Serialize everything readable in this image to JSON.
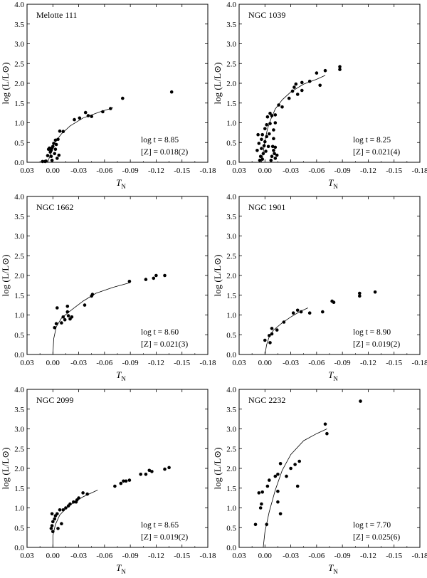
{
  "chart_data": [
    {
      "type": "scatter",
      "title": "Melotte 111",
      "xlabel": "T",
      "xlabel_sub": "N",
      "ylabel": "log (L/L⊙)",
      "xlim": [
        0.03,
        -0.18
      ],
      "ylim": [
        0.0,
        4.0
      ],
      "xticks": [
        "0.03",
        "0.00",
        "-0.03",
        "-0.06",
        "-0.09",
        "-0.12",
        "-0.15",
        "-0.18"
      ],
      "yticks": [
        "0.0",
        "0.5",
        "1.0",
        "1.5",
        "2.0",
        "2.5",
        "3.0",
        "3.5",
        "4.0"
      ],
      "annotation_age": "log t = 8.85",
      "annotation_z": "[Z] = 0.018(2)",
      "points": [
        [
          -0.138,
          1.78
        ],
        [
          -0.081,
          1.62
        ],
        [
          -0.067,
          1.36
        ],
        [
          -0.058,
          1.28
        ],
        [
          -0.045,
          1.16
        ],
        [
          -0.041,
          1.18
        ],
        [
          -0.038,
          1.26
        ],
        [
          -0.031,
          1.12
        ],
        [
          -0.025,
          1.08
        ],
        [
          -0.012,
          0.78
        ],
        [
          -0.008,
          0.79
        ],
        [
          -0.006,
          0.58
        ],
        [
          -0.004,
          0.45
        ],
        [
          -0.003,
          0.33
        ],
        [
          -0.002,
          0.22
        ],
        [
          -0.001,
          0.48
        ],
        [
          0.0,
          0.4
        ],
        [
          0.001,
          0.36
        ],
        [
          0.002,
          0.3
        ],
        [
          0.003,
          0.26
        ],
        [
          0.002,
          0.15
        ],
        [
          0.001,
          0.05
        ],
        [
          0.004,
          0.36
        ],
        [
          0.005,
          0.33
        ],
        [
          0.006,
          0.17
        ],
        [
          0.008,
          0.03
        ],
        [
          0.009,
          0.02
        ],
        [
          0.012,
          0.02
        ],
        [
          -0.003,
          0.56
        ],
        [
          -0.005,
          0.1
        ],
        [
          -0.007,
          0.18
        ]
      ],
      "curve": [
        [
          0.006,
          0.0
        ],
        [
          0.004,
          0.12
        ],
        [
          0.002,
          0.28
        ],
        [
          0.0,
          0.42
        ],
        [
          -0.004,
          0.55
        ],
        [
          -0.01,
          0.72
        ],
        [
          -0.02,
          0.92
        ],
        [
          -0.035,
          1.12
        ],
        [
          -0.055,
          1.28
        ],
        [
          -0.07,
          1.38
        ]
      ]
    },
    {
      "type": "scatter",
      "title": "NGC 1039",
      "xlabel": "T",
      "xlabel_sub": "N",
      "ylabel": "log (L/L⊙)",
      "xlim": [
        0.03,
        -0.18
      ],
      "ylim": [
        0.0,
        4.0
      ],
      "xticks": [
        "0.03",
        "0.00",
        "-0.03",
        "-0.06",
        "-0.09",
        "-0.12",
        "-0.15",
        "-0.18"
      ],
      "yticks": [
        "0.0",
        "0.5",
        "1.0",
        "1.5",
        "2.0",
        "2.5",
        "3.0",
        "3.5",
        "4.0"
      ],
      "annotation_age": "log t = 8.25",
      "annotation_z": "[Z] = 0.021(4)",
      "points": [
        [
          -0.087,
          2.42
        ],
        [
          -0.087,
          2.35
        ],
        [
          -0.07,
          2.32
        ],
        [
          -0.06,
          2.26
        ],
        [
          -0.064,
          1.95
        ],
        [
          -0.052,
          2.05
        ],
        [
          -0.043,
          2.02
        ],
        [
          -0.043,
          1.82
        ],
        [
          -0.038,
          1.72
        ],
        [
          -0.036,
          1.98
        ],
        [
          -0.034,
          1.9
        ],
        [
          -0.032,
          1.8
        ],
        [
          -0.028,
          1.62
        ],
        [
          -0.02,
          1.4
        ],
        [
          -0.016,
          1.45
        ],
        [
          -0.012,
          1.2
        ],
        [
          -0.012,
          1.0
        ],
        [
          -0.01,
          0.82
        ],
        [
          -0.01,
          0.6
        ],
        [
          -0.008,
          1.18
        ],
        [
          -0.006,
          1.24
        ],
        [
          -0.006,
          0.98
        ],
        [
          -0.005,
          0.72
        ],
        [
          -0.004,
          0.4
        ],
        [
          -0.003,
          1.15
        ],
        [
          -0.002,
          0.95
        ],
        [
          -0.002,
          0.65
        ],
        [
          -0.001,
          0.28
        ],
        [
          0.0,
          0.85
        ],
        [
          0.0,
          0.52
        ],
        [
          0.001,
          0.42
        ],
        [
          0.002,
          0.22
        ],
        [
          0.003,
          0.7
        ],
        [
          0.003,
          0.08
        ],
        [
          0.004,
          0.58
        ],
        [
          0.004,
          0.35
        ],
        [
          0.005,
          0.15
        ],
        [
          0.006,
          0.05
        ],
        [
          0.007,
          0.48
        ],
        [
          0.008,
          0.7
        ],
        [
          0.009,
          0.3
        ],
        [
          -0.007,
          0.05
        ],
        [
          -0.008,
          0.15
        ],
        [
          -0.009,
          0.4
        ],
        [
          -0.01,
          0.3
        ],
        [
          -0.011,
          0.22
        ],
        [
          -0.012,
          0.1
        ],
        [
          -0.014,
          0.18
        ],
        [
          -0.012,
          0.38
        ]
      ],
      "curve": [
        [
          0.004,
          0.0
        ],
        [
          0.002,
          0.25
        ],
        [
          0.0,
          0.55
        ],
        [
          -0.003,
          0.85
        ],
        [
          -0.007,
          1.1
        ],
        [
          -0.012,
          1.35
        ],
        [
          -0.02,
          1.58
        ],
        [
          -0.03,
          1.78
        ],
        [
          -0.045,
          1.98
        ],
        [
          -0.06,
          2.1
        ],
        [
          -0.07,
          2.2
        ]
      ]
    },
    {
      "type": "scatter",
      "title": "NGC 1662",
      "xlabel": "T",
      "xlabel_sub": "N",
      "ylabel": "log (L/L⊙)",
      "xlim": [
        0.03,
        -0.18
      ],
      "ylim": [
        0.0,
        4.0
      ],
      "xticks": [
        "0.03",
        "0.00",
        "-0.03",
        "-0.06",
        "-0.09",
        "-0.12",
        "-0.15",
        "-0.18"
      ],
      "yticks": [
        "0.0",
        "0.5",
        "1.0",
        "1.5",
        "2.0",
        "2.5",
        "3.0",
        "3.5",
        "4.0"
      ],
      "annotation_age": "log t = 8.60",
      "annotation_z": "[Z] = 0.021(3)",
      "points": [
        [
          -0.13,
          2.0
        ],
        [
          -0.12,
          2.0
        ],
        [
          -0.117,
          1.93
        ],
        [
          -0.108,
          1.9
        ],
        [
          -0.089,
          1.85
        ],
        [
          -0.046,
          1.52
        ],
        [
          -0.045,
          1.48
        ],
        [
          -0.037,
          1.25
        ],
        [
          -0.022,
          0.95
        ],
        [
          -0.018,
          0.98
        ],
        [
          -0.017,
          1.22
        ],
        [
          -0.017,
          1.08
        ],
        [
          -0.014,
          0.88
        ],
        [
          -0.012,
          0.95
        ],
        [
          -0.01,
          0.8
        ],
        [
          -0.005,
          1.18
        ],
        [
          -0.004,
          0.78
        ],
        [
          -0.002,
          0.68
        ],
        [
          -0.02,
          0.9
        ]
      ],
      "curve": [
        [
          0.0,
          0.0
        ],
        [
          -0.001,
          0.4
        ],
        [
          -0.004,
          0.7
        ],
        [
          -0.01,
          0.92
        ],
        [
          -0.02,
          1.1
        ],
        [
          -0.035,
          1.35
        ],
        [
          -0.05,
          1.55
        ],
        [
          -0.07,
          1.7
        ],
        [
          -0.09,
          1.82
        ]
      ]
    },
    {
      "type": "scatter",
      "title": "NGC 1901",
      "xlabel": "T",
      "xlabel_sub": "N",
      "ylabel": "log (L/L⊙)",
      "xlim": [
        0.03,
        -0.18
      ],
      "ylim": [
        0.0,
        4.0
      ],
      "xticks": [
        "0.03",
        "0.00",
        "-0.03",
        "-0.06",
        "-0.09",
        "-0.12",
        "-0.15",
        "-0.18"
      ],
      "yticks": [
        "0.0",
        "0.5",
        "1.0",
        "1.5",
        "2.0",
        "2.5",
        "3.0",
        "3.5",
        "4.0"
      ],
      "annotation_age": "log t = 8.90",
      "annotation_z": "[Z] = 0.019(2)",
      "points": [
        [
          -0.128,
          1.58
        ],
        [
          -0.11,
          1.55
        ],
        [
          -0.11,
          1.48
        ],
        [
          -0.08,
          1.32
        ],
        [
          -0.078,
          1.35
        ],
        [
          -0.067,
          1.08
        ],
        [
          -0.052,
          1.05
        ],
        [
          -0.042,
          1.08
        ],
        [
          -0.038,
          1.12
        ],
        [
          -0.033,
          1.05
        ],
        [
          -0.022,
          0.82
        ],
        [
          -0.014,
          0.62
        ],
        [
          -0.008,
          0.66
        ],
        [
          -0.008,
          0.52
        ],
        [
          -0.005,
          0.48
        ],
        [
          -0.006,
          0.3
        ],
        [
          0.0,
          0.36
        ]
      ],
      "curve": [
        [
          0.0,
          0.0
        ],
        [
          -0.002,
          0.25
        ],
        [
          -0.005,
          0.45
        ],
        [
          -0.01,
          0.62
        ],
        [
          -0.02,
          0.8
        ],
        [
          -0.03,
          0.95
        ],
        [
          -0.04,
          1.08
        ],
        [
          -0.05,
          1.18
        ]
      ]
    },
    {
      "type": "scatter",
      "title": "NGC 2099",
      "xlabel": "T",
      "xlabel_sub": "N",
      "ylabel": "log (L/L⊙)",
      "xlim": [
        0.03,
        -0.18
      ],
      "ylim": [
        0.0,
        4.0
      ],
      "xticks": [
        "0.03",
        "0.00",
        "-0.03",
        "-0.06",
        "-0.09",
        "-0.12",
        "-0.15",
        "-0.18"
      ],
      "yticks": [
        "0.0",
        "0.5",
        "1.0",
        "1.5",
        "2.0",
        "2.5",
        "3.0",
        "3.5",
        "4.0"
      ],
      "annotation_age": "log t = 8.65",
      "annotation_z": "[Z] = 0.019(2)",
      "points": [
        [
          -0.135,
          2.02
        ],
        [
          -0.13,
          1.98
        ],
        [
          -0.115,
          1.92
        ],
        [
          -0.112,
          1.95
        ],
        [
          -0.108,
          1.85
        ],
        [
          -0.102,
          1.85
        ],
        [
          -0.089,
          1.7
        ],
        [
          -0.085,
          1.68
        ],
        [
          -0.082,
          1.68
        ],
        [
          -0.079,
          1.62
        ],
        [
          -0.072,
          1.55
        ],
        [
          -0.04,
          1.35
        ],
        [
          -0.035,
          1.38
        ],
        [
          -0.03,
          1.25
        ],
        [
          -0.028,
          1.2
        ],
        [
          -0.027,
          1.15
        ],
        [
          -0.024,
          1.15
        ],
        [
          -0.02,
          1.1
        ],
        [
          -0.018,
          1.05
        ],
        [
          -0.015,
          1.0
        ],
        [
          -0.012,
          0.95
        ],
        [
          -0.008,
          0.95
        ],
        [
          -0.006,
          0.48
        ],
        [
          -0.005,
          0.85
        ],
        [
          -0.003,
          0.8
        ],
        [
          -0.002,
          0.72
        ],
        [
          0.0,
          0.65
        ],
        [
          0.0,
          0.4
        ],
        [
          0.001,
          0.85
        ],
        [
          0.001,
          0.55
        ],
        [
          0.002,
          0.48
        ],
        [
          -0.01,
          0.6
        ]
      ],
      "curve": [
        [
          0.0,
          0.0
        ],
        [
          0.0,
          0.3
        ],
        [
          -0.003,
          0.58
        ],
        [
          -0.008,
          0.82
        ],
        [
          -0.015,
          0.98
        ],
        [
          -0.025,
          1.15
        ],
        [
          -0.035,
          1.28
        ],
        [
          -0.045,
          1.38
        ],
        [
          -0.052,
          1.45
        ]
      ]
    },
    {
      "type": "scatter",
      "title": "NGC 2232",
      "xlabel": "T",
      "xlabel_sub": "N",
      "ylabel": "log (L/L⊙)",
      "xlim": [
        0.03,
        -0.18
      ],
      "ylim": [
        0.0,
        4.0
      ],
      "xticks": [
        "0.03",
        "0.00",
        "-0.03",
        "-0.06",
        "-0.09",
        "-0.12",
        "-0.15",
        "-0.18"
      ],
      "yticks": [
        "0.0",
        "0.5",
        "1.0",
        "1.5",
        "2.0",
        "2.5",
        "3.0",
        "3.5",
        "4.0"
      ],
      "annotation_age": "log t = 7.70",
      "annotation_z": "[Z] = 0.025(6)",
      "points": [
        [
          -0.111,
          3.7
        ],
        [
          -0.07,
          3.12
        ],
        [
          -0.072,
          2.88
        ],
        [
          -0.04,
          2.18
        ],
        [
          -0.035,
          2.1
        ],
        [
          -0.038,
          1.55
        ],
        [
          -0.03,
          2.0
        ],
        [
          -0.025,
          1.8
        ],
        [
          -0.018,
          2.12
        ],
        [
          -0.015,
          1.85
        ],
        [
          -0.015,
          1.42
        ],
        [
          -0.015,
          1.15
        ],
        [
          -0.018,
          0.85
        ],
        [
          -0.012,
          1.8
        ],
        [
          -0.005,
          1.7
        ],
        [
          -0.003,
          1.55
        ],
        [
          -0.002,
          0.58
        ],
        [
          0.003,
          1.4
        ],
        [
          0.004,
          1.1
        ],
        [
          0.005,
          1.0
        ],
        [
          0.007,
          1.38
        ],
        [
          0.011,
          0.58
        ]
      ],
      "curve": [
        [
          0.002,
          0.0
        ],
        [
          0.0,
          0.4
        ],
        [
          -0.005,
          0.9
        ],
        [
          -0.012,
          1.45
        ],
        [
          -0.02,
          1.95
        ],
        [
          -0.03,
          2.35
        ],
        [
          -0.045,
          2.7
        ],
        [
          -0.06,
          2.88
        ],
        [
          -0.072,
          3.0
        ]
      ]
    }
  ]
}
